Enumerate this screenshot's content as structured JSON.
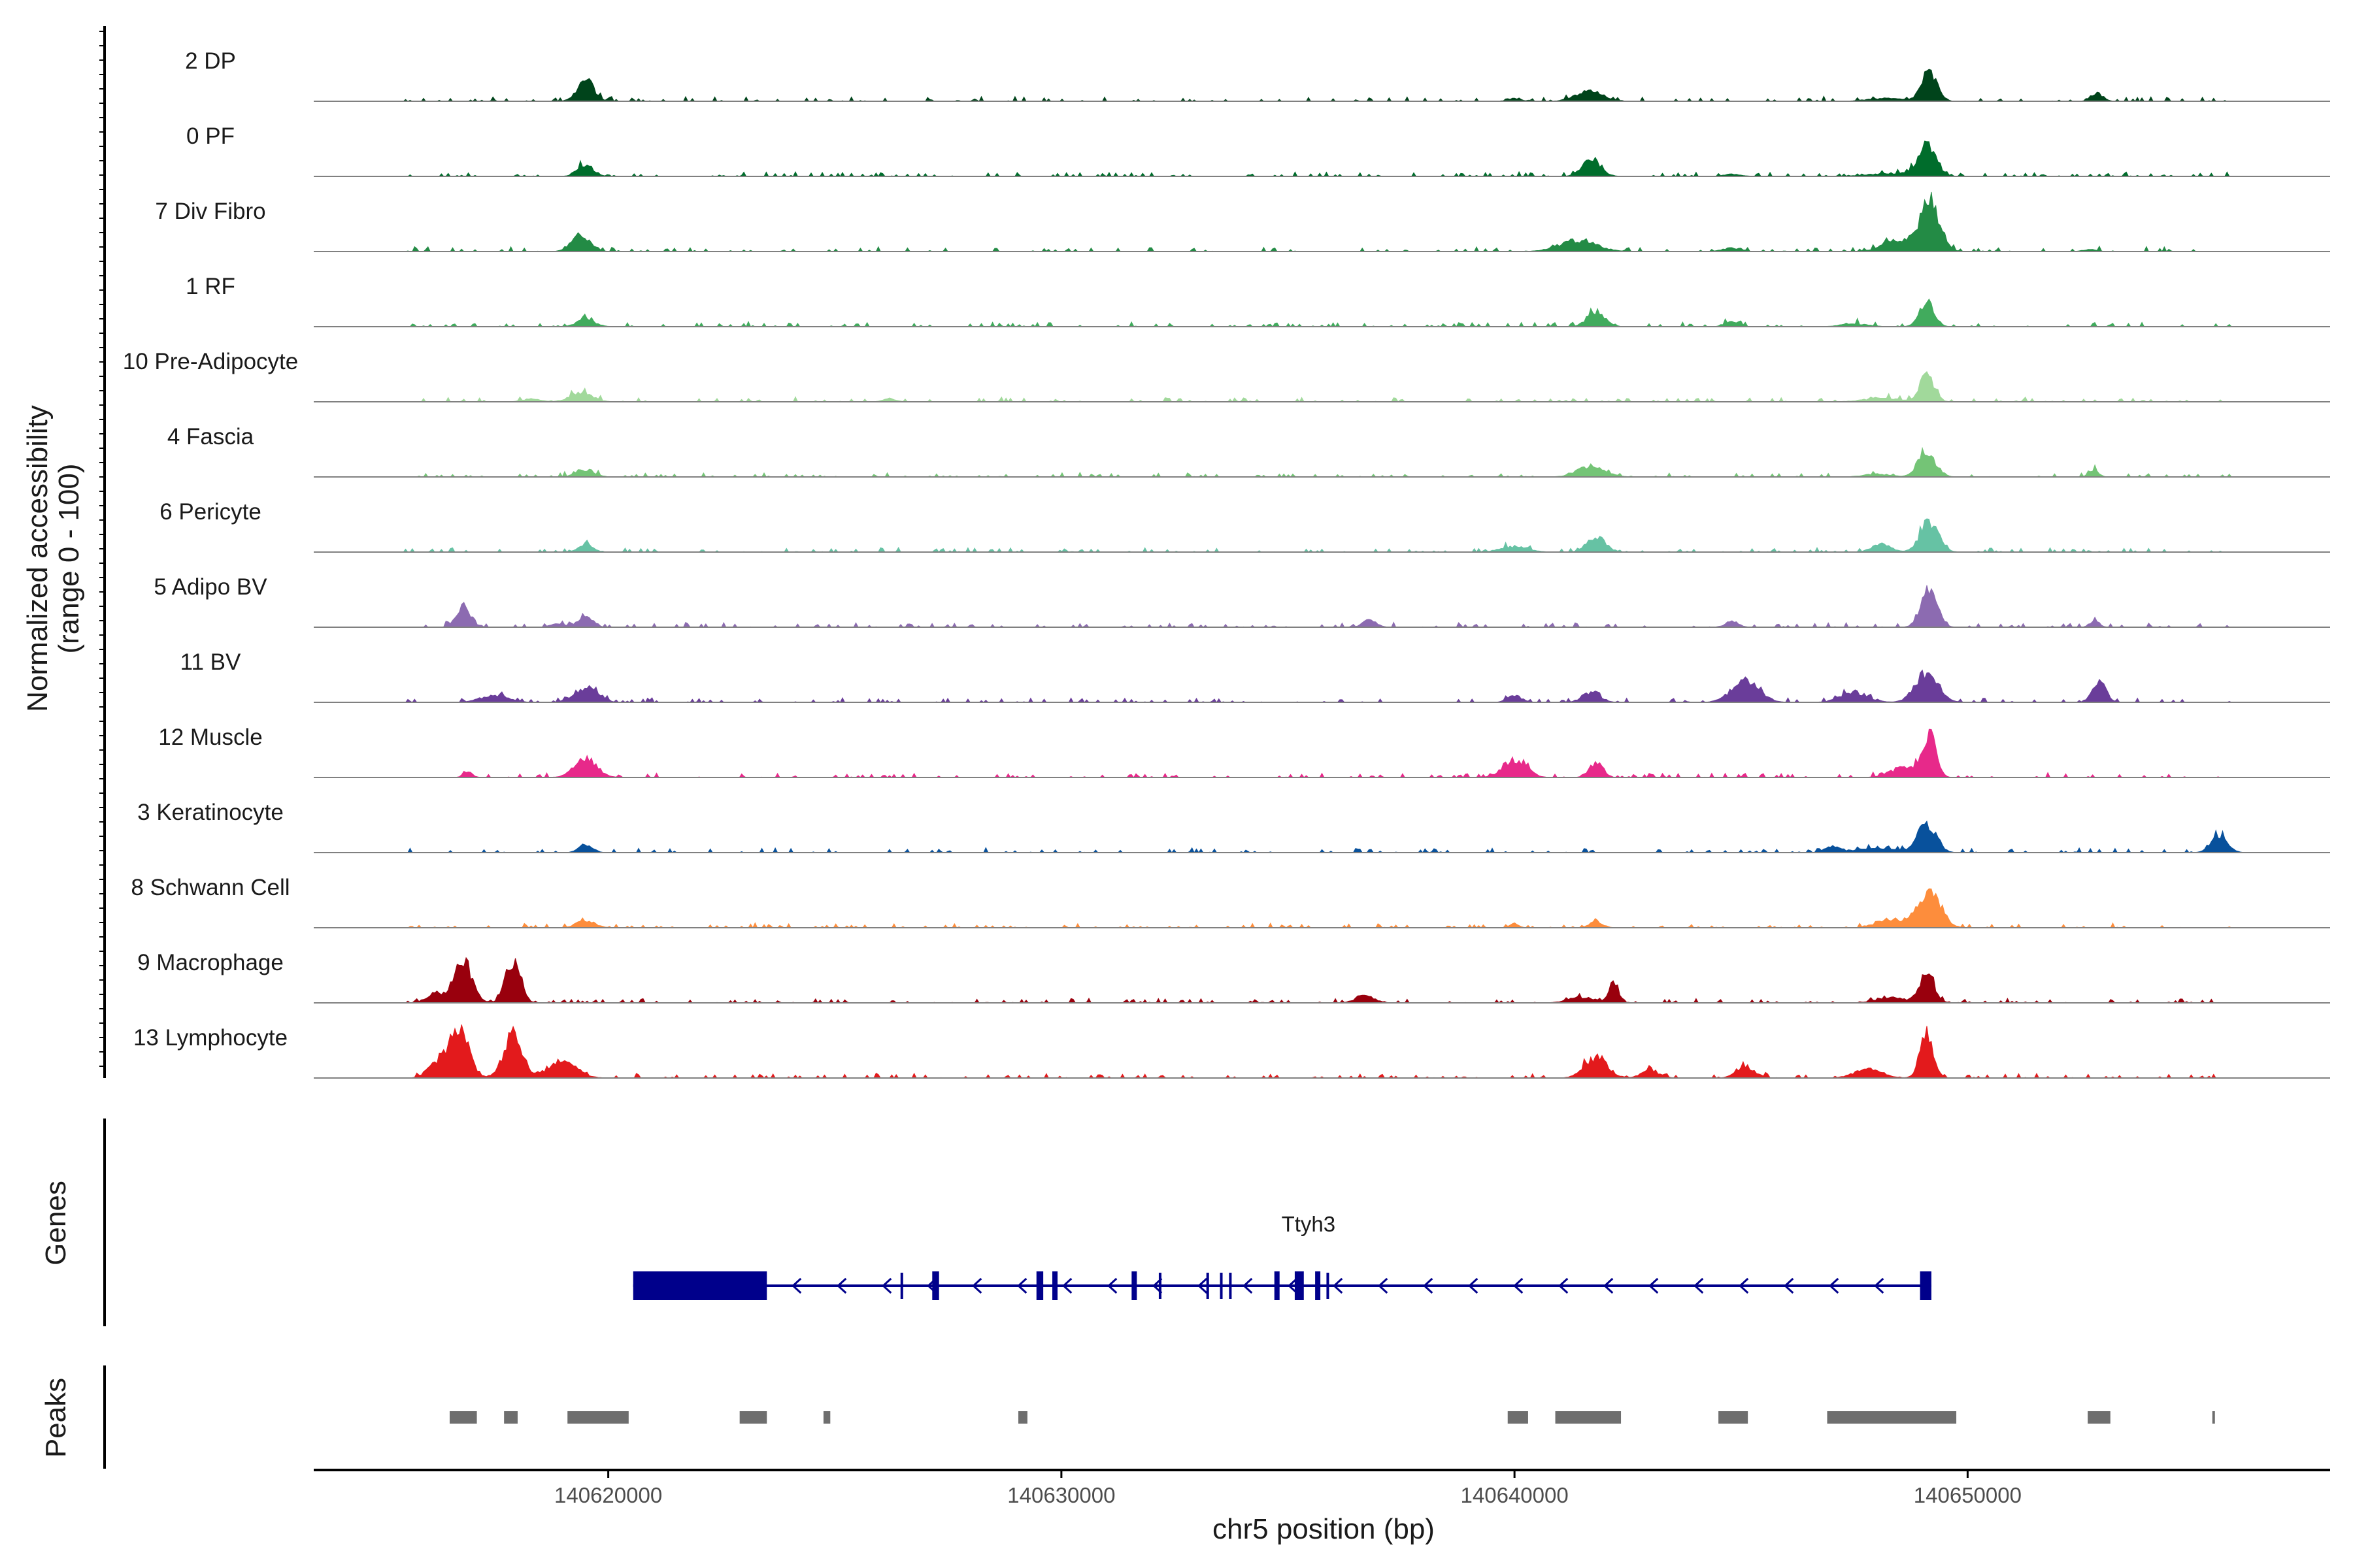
{
  "chart_data": {
    "type": "area",
    "title": "",
    "xlabel": "chr5 position (bp)",
    "ylabel": "Normalized accessibility\n(range 0 - 100)",
    "xlim": [
      140613500,
      140658000
    ],
    "ylim": [
      0,
      100
    ],
    "x_ticks": [
      140620000,
      140630000,
      140640000,
      140650000
    ],
    "x_tick_labels": [
      "140620000",
      "140630000",
      "140640000",
      "140650000"
    ],
    "grid": false,
    "tracks": [
      {
        "name": "2 DP",
        "color": "#00441b",
        "peaks": [
          [
            140619500,
            30,
            180
          ],
          [
            140641650,
            14,
            300
          ],
          [
            140649150,
            40,
            170
          ],
          [
            140652850,
            12,
            130
          ],
          [
            140640000,
            4,
            150
          ],
          [
            140648200,
            4,
            400
          ]
        ]
      },
      {
        "name": "0 PF",
        "color": "#006d2c",
        "peaks": [
          [
            140619500,
            16,
            180
          ],
          [
            140641700,
            26,
            200
          ],
          [
            140649100,
            42,
            200
          ],
          [
            140648300,
            4,
            500
          ],
          [
            140644800,
            3,
            200
          ]
        ]
      },
      {
        "name": "7 Div Fibro",
        "color": "#238b45",
        "peaks": [
          [
            140619400,
            24,
            200
          ],
          [
            140641400,
            16,
            400
          ],
          [
            140649150,
            70,
            220
          ],
          [
            140648400,
            16,
            300
          ],
          [
            140644800,
            5,
            200
          ],
          [
            140652700,
            3,
            150
          ]
        ]
      },
      {
        "name": "1 RF",
        "color": "#41ab5d",
        "peaks": [
          [
            140619500,
            10,
            200
          ],
          [
            140641800,
            20,
            200
          ],
          [
            140649100,
            38,
            160
          ],
          [
            140644800,
            8,
            150
          ],
          [
            140647500,
            4,
            300
          ]
        ]
      },
      {
        "name": "10 Pre-Adipocyte",
        "color": "#a1d99b",
        "peaks": [
          [
            140619400,
            12,
            250
          ],
          [
            140649100,
            36,
            160
          ],
          [
            140648100,
            5,
            400
          ],
          [
            140618300,
            4,
            200
          ],
          [
            140626200,
            4,
            150
          ]
        ]
      },
      {
        "name": "4 Fascia",
        "color": "#74c476",
        "peaks": [
          [
            140619500,
            10,
            200
          ],
          [
            140641700,
            16,
            300
          ],
          [
            140649100,
            34,
            200
          ],
          [
            140652800,
            10,
            100
          ],
          [
            140648000,
            4,
            300
          ]
        ]
      },
      {
        "name": "6 Pericyte",
        "color": "#66c2a4",
        "peaks": [
          [
            140619500,
            12,
            150
          ],
          [
            140641800,
            22,
            200
          ],
          [
            140649150,
            44,
            200
          ],
          [
            140648100,
            12,
            200
          ],
          [
            140640000,
            8,
            300
          ]
        ]
      },
      {
        "name": "5 Adipo BV",
        "color": "#8c6bb1",
        "peaks": [
          [
            140616800,
            30,
            160
          ],
          [
            140619500,
            16,
            150
          ],
          [
            140636800,
            10,
            150
          ],
          [
            140649150,
            52,
            180
          ],
          [
            140644800,
            8,
            150
          ],
          [
            140652800,
            10,
            100
          ],
          [
            140618900,
            6,
            150
          ]
        ]
      },
      {
        "name": "11 BV",
        "color": "#6a3d9a",
        "peaks": [
          [
            140619500,
            20,
            250
          ],
          [
            140645100,
            30,
            300
          ],
          [
            140649100,
            44,
            250
          ],
          [
            140652900,
            28,
            150
          ],
          [
            140647500,
            14,
            300
          ],
          [
            140641700,
            14,
            200
          ],
          [
            140640000,
            10,
            150
          ],
          [
            140617500,
            10,
            300
          ]
        ]
      },
      {
        "name": "12 Muscle",
        "color": "#e7298a",
        "peaks": [
          [
            140619500,
            26,
            250
          ],
          [
            140641800,
            22,
            150
          ],
          [
            140649150,
            60,
            150
          ],
          [
            140640000,
            26,
            250
          ],
          [
            140648600,
            14,
            300
          ],
          [
            140616900,
            8,
            100
          ]
        ]
      },
      {
        "name": "3 Keratinocyte",
        "color": "#08519c",
        "peaks": [
          [
            140619500,
            12,
            150
          ],
          [
            140649100,
            40,
            200
          ],
          [
            140655550,
            24,
            180
          ],
          [
            140648000,
            6,
            500
          ],
          [
            140647000,
            8,
            150
          ]
        ]
      },
      {
        "name": "8 Schwann Cell",
        "color": "#fd8d3c",
        "peaks": [
          [
            140619500,
            10,
            200
          ],
          [
            140649150,
            50,
            250
          ],
          [
            140648300,
            12,
            300
          ],
          [
            140641800,
            8,
            150
          ],
          [
            140640000,
            6,
            100
          ]
        ]
      },
      {
        "name": "9 Macrophage",
        "color": "#99000d",
        "peaks": [
          [
            140616800,
            60,
            200
          ],
          [
            140617900,
            64,
            160
          ],
          [
            140642200,
            30,
            100
          ],
          [
            140649100,
            46,
            160
          ],
          [
            140636700,
            10,
            200
          ],
          [
            140616200,
            14,
            200
          ],
          [
            140641500,
            8,
            300
          ],
          [
            140648300,
            8,
            300
          ]
        ]
      },
      {
        "name": "13 Lymphocyte",
        "color": "#e31a1c",
        "peaks": [
          [
            140616700,
            70,
            220
          ],
          [
            140617900,
            62,
            200
          ],
          [
            140619000,
            24,
            300
          ],
          [
            140641800,
            30,
            250
          ],
          [
            140649100,
            62,
            150
          ],
          [
            140645100,
            16,
            200
          ],
          [
            140647800,
            12,
            300
          ],
          [
            140643000,
            10,
            200
          ],
          [
            140616200,
            20,
            200
          ]
        ]
      }
    ],
    "genes": [
      {
        "name": "Ttyh3",
        "color": "#00008b",
        "strand": "-",
        "start": 140620550,
        "end": 140649200,
        "exons": [
          [
            140620550,
            140623500
          ],
          [
            140627150,
            140627300
          ],
          [
            140629450,
            140629600
          ],
          [
            140629800,
            140629900
          ],
          [
            140631550,
            140631650
          ],
          [
            140634700,
            140634800
          ],
          [
            140635150,
            140635350
          ],
          [
            140635600,
            140635700
          ],
          [
            140648950,
            140649200
          ]
        ],
        "introns_marks": [
          140626450,
          140632150,
          140633200,
          140633500,
          140633700,
          140635850
        ]
      }
    ],
    "peaks": [
      [
        140616500,
        140617100
      ],
      [
        140617700,
        140618000
      ],
      [
        140619100,
        140620450
      ],
      [
        140622900,
        140623500
      ],
      [
        140624750,
        140624900
      ],
      [
        140629050,
        140629250
      ],
      [
        140639850,
        140640300
      ],
      [
        140640900,
        140642350
      ],
      [
        140644500,
        140645150
      ],
      [
        140646900,
        140649750
      ],
      [
        140652650,
        140653150
      ],
      [
        140655400,
        140655450
      ]
    ],
    "panels": {
      "genes_title": "Genes",
      "peaks_title": "Peaks"
    }
  }
}
